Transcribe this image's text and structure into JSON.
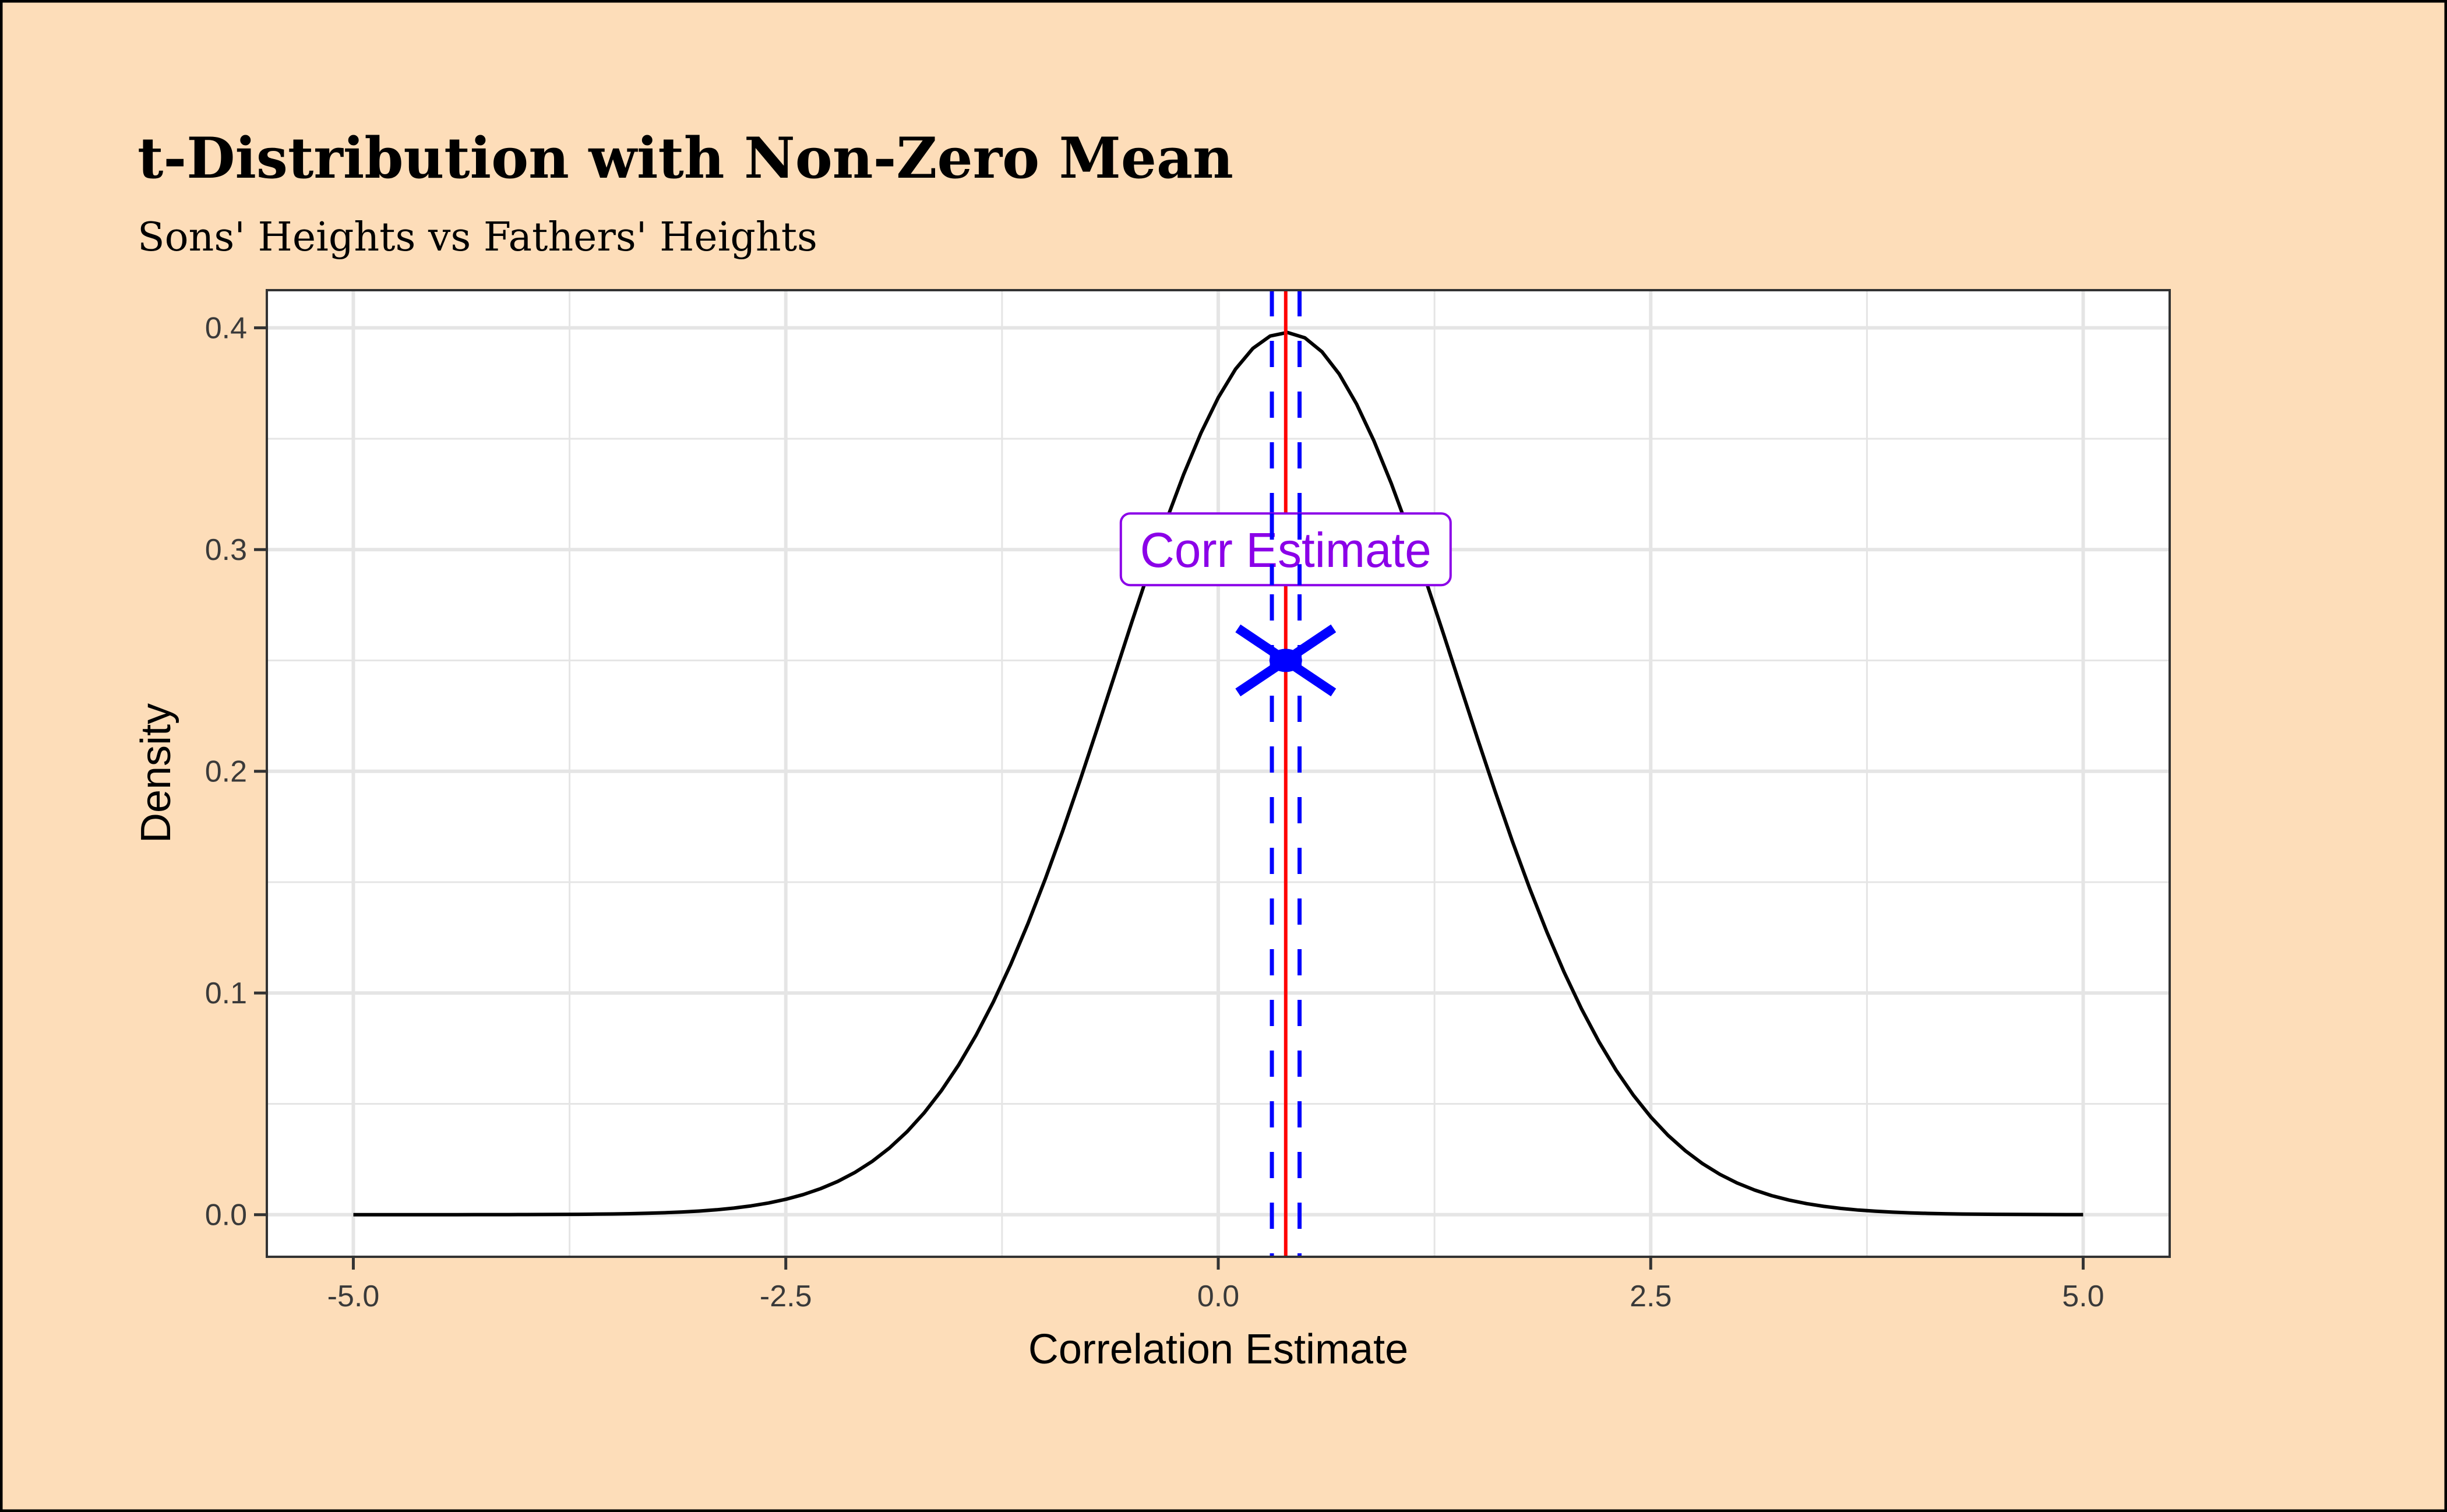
{
  "chart_data": {
    "type": "line",
    "title": "t-Distribution with Non-Zero Mean",
    "subtitle": "Sons' Heights vs Fathers' Heights",
    "xlabel": "Correlation Estimate",
    "ylabel": "Density",
    "xlim": [
      -5.5,
      5.5
    ],
    "ylim": [
      -0.019,
      0.417
    ],
    "x_ticks": [
      -5.0,
      -2.5,
      0.0,
      2.5,
      5.0
    ],
    "x_tick_labels": [
      "-5.0",
      "-2.5",
      "0.0",
      "2.5",
      "5.0"
    ],
    "y_ticks": [
      0.0,
      0.1,
      0.2,
      0.3,
      0.4
    ],
    "y_tick_labels": [
      "0.0",
      "0.1",
      "0.2",
      "0.3",
      "0.4"
    ],
    "grid": true,
    "curve": {
      "distribution": "t",
      "mean": 0.39,
      "df": 100,
      "x_range": [
        -5,
        5
      ],
      "color": "#000000"
    },
    "vlines": [
      {
        "name": "estimate",
        "x": 0.39,
        "color": "#FF0000",
        "style": "solid"
      },
      {
        "name": "ci-lower",
        "x": 0.31,
        "color": "#0000FF",
        "style": "dashed"
      },
      {
        "name": "ci-upper",
        "x": 0.47,
        "color": "#0000FF",
        "style": "dashed"
      }
    ],
    "point": {
      "x": 0.39,
      "y": 0.25,
      "color": "#0000FF",
      "shape": "cross"
    },
    "annotation": {
      "text": "Corr Estimate",
      "x": 0.39,
      "y": 0.3,
      "color": "#8B00E8"
    }
  },
  "colors": {
    "background": "#FDDDB9",
    "panel": "#FFFFFF",
    "grid": "#E5E5E5"
  }
}
